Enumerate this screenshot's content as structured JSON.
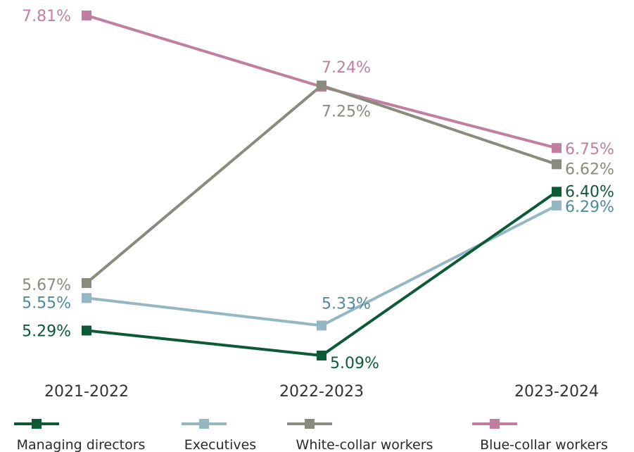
{
  "chart_data": {
    "type": "line",
    "categories": [
      "2021-2022",
      "2022-2023",
      "2023-2024"
    ],
    "series": [
      {
        "name": "Managing directors",
        "values": [
          5.29,
          5.09,
          6.4
        ],
        "labels": [
          "5.29%",
          "5.09%",
          "6.40%"
        ],
        "color": "#0d5a36",
        "label_color": "#0d5a36"
      },
      {
        "name": "Executives",
        "values": [
          5.55,
          5.33,
          6.29
        ],
        "labels": [
          "5.55%",
          "5.33%",
          "6.29%"
        ],
        "color": "#93b8c4",
        "label_color": "#4f8a98"
      },
      {
        "name": "White-collar workers",
        "values": [
          5.67,
          7.25,
          6.62
        ],
        "labels": [
          "5.67%",
          "7.25%",
          "6.62%"
        ],
        "color": "#8b8a7e",
        "label_color": "#8b8a7e"
      },
      {
        "name": "Blue-collar workers",
        "values": [
          7.81,
          7.24,
          6.75
        ],
        "labels": [
          "7.81%",
          "7.24%",
          "6.75%"
        ],
        "color": "#c07fa0",
        "label_color": "#c07fa0"
      }
    ],
    "ylim": [
      5.09,
      7.81
    ],
    "grid": false,
    "legend": "bottom"
  }
}
